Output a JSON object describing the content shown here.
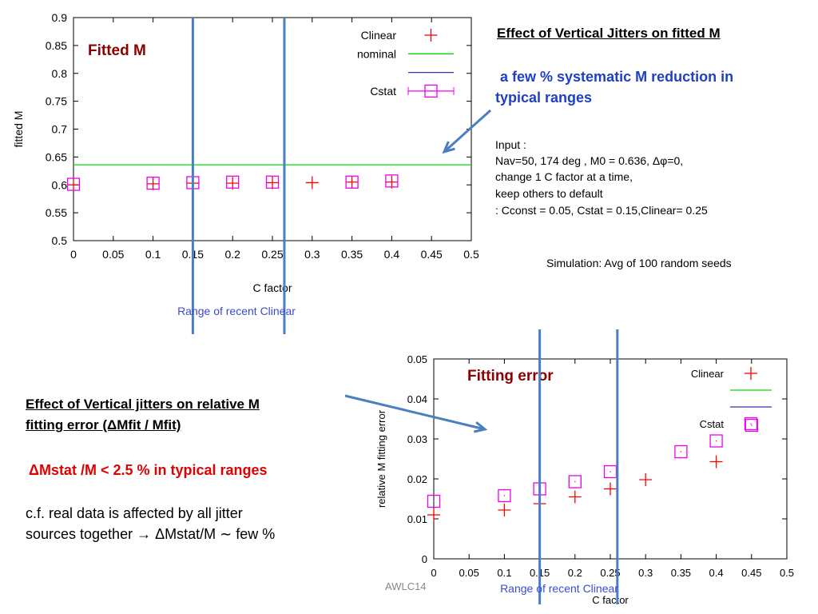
{
  "top_chart": {
    "chart_data": {
      "type": "scatter",
      "title": "Fitted M",
      "xlabel": "C factor",
      "ylabel": "fitted M",
      "xlim": [
        0,
        0.5
      ],
      "ylim": [
        0.5,
        0.9
      ],
      "x_ticks": [
        "0",
        "0.05",
        "0.1",
        "0.15",
        "0.2",
        "0.25",
        "0.3",
        "0.35",
        "0.4",
        "0.45",
        "0.5"
      ],
      "y_ticks": [
        "0.5",
        "0.55",
        "0.6",
        "0.65",
        "0.7",
        "0.75",
        "0.8",
        "0.85",
        "0.9"
      ],
      "legend_position": "top-right",
      "series": [
        {
          "name": "Clinear",
          "marker": "plus",
          "color": "#ff0000",
          "x": [
            0,
            0.1,
            0.15,
            0.2,
            0.25,
            0.3,
            0.35,
            0.4
          ],
          "y": [
            0.6,
            0.602,
            0.603,
            0.603,
            0.604,
            0.604,
            0.605,
            0.605
          ]
        },
        {
          "name": "nominal",
          "marker": "line",
          "color": "#00dd00",
          "y": 0.636
        },
        {
          "name": "",
          "marker": "line",
          "color": "#3333aa"
        },
        {
          "name": "Cstat",
          "marker": "square",
          "color": "#ee00ee",
          "x": [
            0,
            0.1,
            0.15,
            0.2,
            0.25,
            0.35,
            0.4
          ],
          "y": [
            0.601,
            0.603,
            0.604,
            0.605,
            0.605,
            0.605,
            0.607
          ]
        }
      ],
      "vertical_markers": [
        0.15,
        0.265
      ],
      "range_label": "Range of recent Clinear"
    }
  },
  "bottom_chart": {
    "chart_data": {
      "type": "scatter",
      "title": "Fitting error",
      "xlabel": "C factor",
      "ylabel": "relative M fitting error",
      "xlim": [
        0,
        0.5
      ],
      "ylim": [
        0,
        0.05
      ],
      "x_ticks": [
        "0",
        "0.05",
        "0.1",
        "0.15",
        "0.2",
        "0.25",
        "0.3",
        "0.35",
        "0.4",
        "0.45",
        "0.5"
      ],
      "y_ticks": [
        "0",
        "0.01",
        "0.02",
        "0.03",
        "0.04",
        "0.05"
      ],
      "legend_position": "top-right",
      "series": [
        {
          "name": "Clinear",
          "marker": "plus",
          "color": "#ff0000",
          "x": [
            0,
            0.1,
            0.15,
            0.2,
            0.25,
            0.3,
            0.4
          ],
          "y": [
            0.011,
            0.0122,
            0.0138,
            0.0155,
            0.0175,
            0.0198,
            0.0243
          ]
        },
        {
          "name": "",
          "marker": "line",
          "color": "#00dd00"
        },
        {
          "name": "",
          "marker": "line",
          "color": "#3333aa"
        },
        {
          "name": "Cstat",
          "marker": "square",
          "color": "#ee00ee",
          "x": [
            0,
            0.1,
            0.15,
            0.2,
            0.25,
            0.35,
            0.4,
            0.45
          ],
          "y": [
            0.0144,
            0.0158,
            0.0175,
            0.0193,
            0.0218,
            0.0268,
            0.0295,
            0.0334
          ]
        }
      ],
      "vertical_markers": [
        0.15,
        0.26
      ],
      "range_label": "Range of recent Clinear"
    }
  },
  "text": {
    "top_heading": "Effect of Vertical Jitters on fitted M",
    "top_highlight_1": "a few  % systematic M reduction in",
    "top_highlight_2": "typical ranges",
    "input_1": "Input :",
    "input_2": "Nav=50,  174 deg , M0 = 0.636, Δφ=0,",
    "input_3": "change 1 C factor at a time,",
    "input_4": " keep others to default",
    "input_5": ": Cconst = 0.05, Cstat = 0.15,Clinear= 0.25",
    "simulation": "Simulation: Avg of 100 random seeds",
    "bottom_heading_1": "Effect of Vertical jitters on relative M",
    "bottom_heading_2": "fitting error  (ΔMfit / Mfit)",
    "bottom_highlight": "ΔMstat /M < 2.5 % in typical ranges",
    "cf_1": " c.f. real data is affected by all jitter",
    "cf_2": "sources together   → ΔMstat/M ∼ few %",
    "footer": "AWLC14"
  }
}
